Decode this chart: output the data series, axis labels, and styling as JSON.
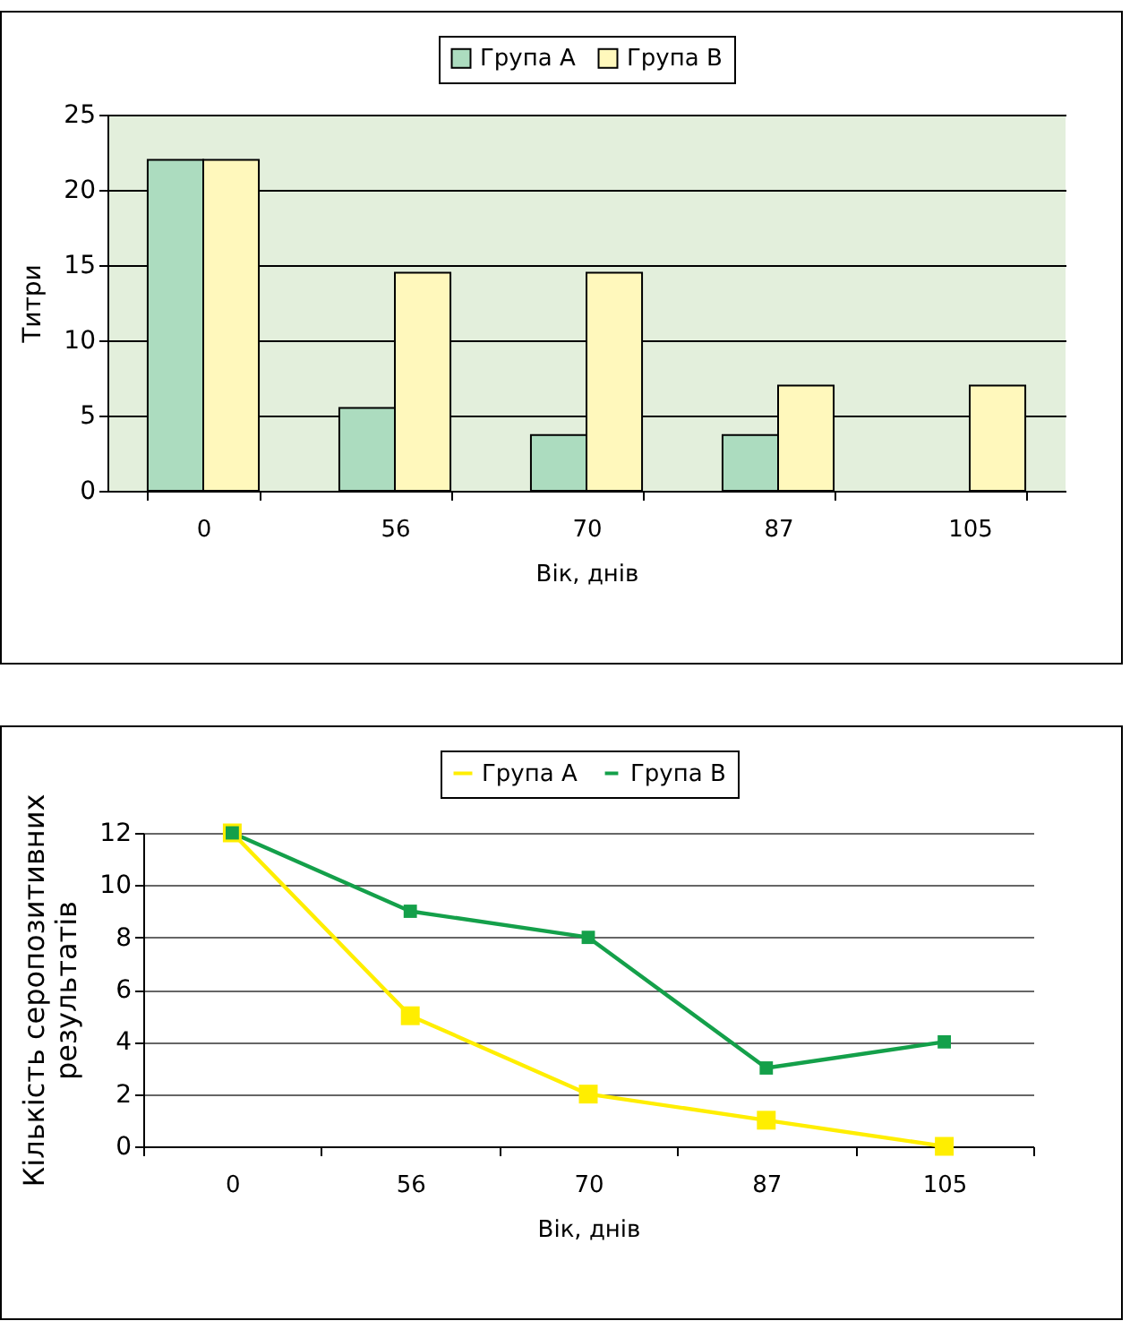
{
  "chart_data": [
    {
      "type": "bar",
      "categories": [
        "0",
        "56",
        "70",
        "87",
        "105"
      ],
      "xlabel": "Вік, днів",
      "ylabel": "Титри",
      "ylim": [
        0,
        25
      ],
      "yticks": [
        0,
        5,
        10,
        15,
        20,
        25
      ],
      "grid": "y",
      "legend": "top",
      "series": [
        {
          "name": "Група А",
          "color": "#acdcbf",
          "values": [
            22,
            5.5,
            3.7,
            3.7,
            null
          ]
        },
        {
          "name": "Група В",
          "color": "#fff8bc",
          "values": [
            22,
            14.5,
            14.5,
            7,
            7
          ]
        }
      ]
    },
    {
      "type": "line",
      "categories": [
        "0",
        "56",
        "70",
        "87",
        "105"
      ],
      "xlabel": "Вік, днів",
      "ylabel": "Кількість серопозитивних результатів",
      "ylim": [
        0,
        12
      ],
      "yticks": [
        0,
        2,
        4,
        6,
        8,
        10,
        12
      ],
      "grid": "y",
      "legend": "top",
      "marker": "square",
      "line_style": "solid",
      "series": [
        {
          "name": "Група А",
          "color": "#ffee00",
          "values": [
            12,
            5,
            2,
            1,
            0
          ]
        },
        {
          "name": "Група В",
          "color": "#14a04a",
          "values": [
            12,
            9,
            8,
            3,
            4
          ]
        }
      ]
    }
  ]
}
